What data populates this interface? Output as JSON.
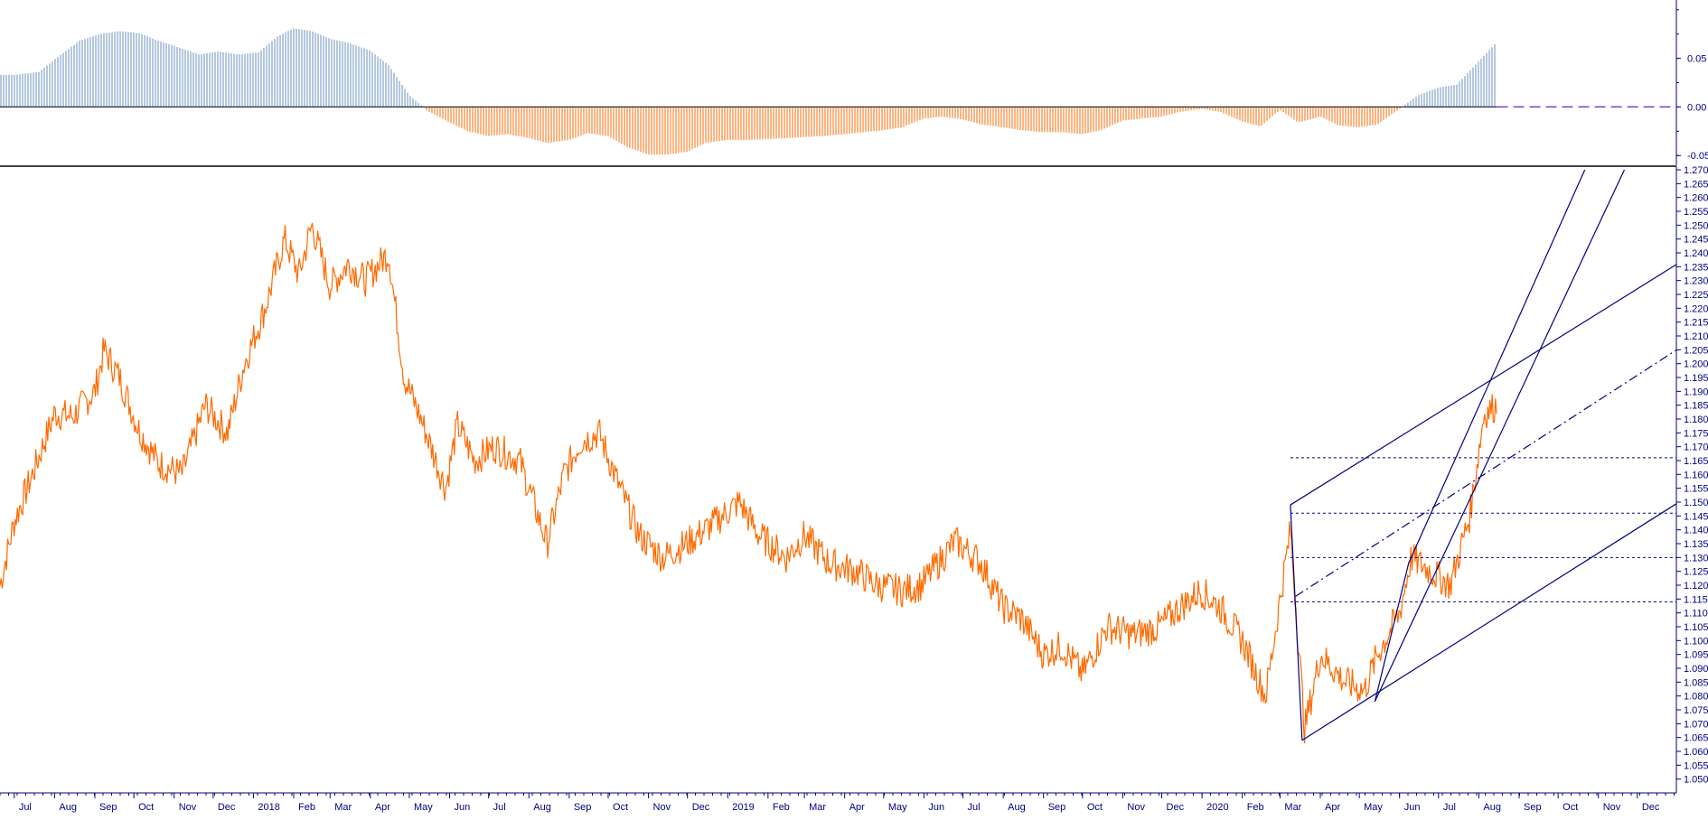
{
  "colors": {
    "price": "#ff6a00",
    "positive_bar": "#6a8fbf",
    "negative_bar": "#ff6a00",
    "trend_lines": "#000080",
    "axis_text": "#000080",
    "zero_line": "#7a3dbf"
  },
  "chart_data": [
    {
      "type": "bar",
      "role": "oscillator-histogram",
      "ylim": [
        -0.06,
        0.11
      ],
      "yticks": [
        "0.05",
        "0.00",
        "-0.05"
      ],
      "series": [
        {
          "x": [
            "2017-07-01",
            "2017-07-20",
            "2017-08-05",
            "2017-08-20",
            "2017-09-05",
            "2017-09-20",
            "2017-10-05",
            "2017-10-20",
            "2017-11-05",
            "2017-11-20",
            "2017-12-05",
            "2017-12-20",
            "2018-01-05",
            "2018-01-20",
            "2018-02-01",
            "2018-02-15",
            "2018-03-01",
            "2018-03-15",
            "2018-04-01",
            "2018-04-15",
            "2018-05-01",
            "2018-05-15",
            "2018-06-01",
            "2018-06-15",
            "2018-07-01",
            "2018-07-15",
            "2018-08-01",
            "2018-08-15",
            "2018-09-01",
            "2018-09-15",
            "2018-10-01",
            "2018-10-15",
            "2018-11-01",
            "2018-11-15",
            "2018-12-01",
            "2018-12-15",
            "2019-01-01",
            "2019-01-15",
            "2019-02-01",
            "2019-02-15",
            "2019-03-01",
            "2019-03-15",
            "2019-04-01",
            "2019-04-15",
            "2019-05-01",
            "2019-05-15",
            "2019-06-01",
            "2019-06-15",
            "2019-07-01",
            "2019-07-15",
            "2019-08-01",
            "2019-08-15",
            "2019-09-01",
            "2019-09-15",
            "2019-10-01",
            "2019-10-15",
            "2019-11-01",
            "2019-11-15",
            "2019-12-01",
            "2019-12-15",
            "2020-01-01",
            "2020-01-15",
            "2020-02-01",
            "2020-02-15",
            "2020-03-01",
            "2020-03-15",
            "2020-04-01",
            "2020-04-15",
            "2020-05-01",
            "2020-05-15",
            "2020-06-01",
            "2020-06-15",
            "2020-07-01",
            "2020-07-15",
            "2020-08-01",
            "2020-08-15"
          ],
          "values": [
            0.033,
            0.036,
            0.053,
            0.068,
            0.075,
            0.078,
            0.076,
            0.068,
            0.061,
            0.054,
            0.057,
            0.054,
            0.056,
            0.073,
            0.081,
            0.078,
            0.07,
            0.066,
            0.058,
            0.043,
            0.012,
            -0.004,
            -0.016,
            -0.025,
            -0.03,
            -0.028,
            -0.032,
            -0.037,
            -0.034,
            -0.027,
            -0.03,
            -0.041,
            -0.049,
            -0.049,
            -0.046,
            -0.037,
            -0.034,
            -0.034,
            -0.033,
            -0.032,
            -0.031,
            -0.03,
            -0.028,
            -0.026,
            -0.024,
            -0.021,
            -0.012,
            -0.01,
            -0.013,
            -0.018,
            -0.021,
            -0.024,
            -0.026,
            -0.026,
            -0.028,
            -0.024,
            -0.014,
            -0.012,
            -0.01,
            -0.005,
            -0.002,
            -0.005,
            -0.015,
            -0.02,
            -0.003,
            -0.016,
            -0.01,
            -0.019,
            -0.021,
            -0.018,
            -0.002,
            0.012,
            0.02,
            0.023,
            0.047,
            0.067
          ]
        }
      ]
    },
    {
      "type": "line",
      "role": "price",
      "ylim": [
        1.045,
        1.27
      ],
      "ytick_step": 0.005,
      "ytick_label_range": [
        1.05,
        1.27
      ],
      "xlim": [
        "2017-06-20",
        "2020-12-31"
      ],
      "x_tick_labels": [
        "Jul",
        "Aug",
        "Sep",
        "Oct",
        "Nov",
        "Dec",
        "2018",
        "Feb",
        "Mar",
        "Apr",
        "May",
        "Jun",
        "Jul",
        "Aug",
        "Sep",
        "Oct",
        "Nov",
        "Dec",
        "2019",
        "Feb",
        "Mar",
        "Apr",
        "May",
        "Jun",
        "Jul",
        "Aug",
        "Sep",
        "Oct",
        "Nov",
        "Dec",
        "2020",
        "Feb",
        "Mar",
        "Apr",
        "May",
        "Jun",
        "Jul",
        "Aug",
        "Sep",
        "Oct",
        "Nov",
        "Dec"
      ],
      "series": [
        {
          "x": [
            "2017-06-20",
            "2017-07-01",
            "2017-07-15",
            "2017-08-01",
            "2017-08-15",
            "2017-09-01",
            "2017-09-08",
            "2017-09-20",
            "2017-10-05",
            "2017-10-20",
            "2017-11-07",
            "2017-11-25",
            "2017-12-12",
            "2017-12-25",
            "2018-01-10",
            "2018-01-25",
            "2018-02-05",
            "2018-02-15",
            "2018-03-01",
            "2018-03-15",
            "2018-03-28",
            "2018-04-15",
            "2018-04-27",
            "2018-05-10",
            "2018-05-29",
            "2018-06-07",
            "2018-06-20",
            "2018-07-05",
            "2018-07-25",
            "2018-08-15",
            "2018-08-28",
            "2018-09-10",
            "2018-09-24",
            "2018-10-10",
            "2018-10-25",
            "2018-11-12",
            "2018-11-30",
            "2018-12-15",
            "2019-01-10",
            "2019-01-25",
            "2019-02-15",
            "2019-03-01",
            "2019-03-20",
            "2019-04-10",
            "2019-04-26",
            "2019-05-15",
            "2019-05-30",
            "2019-06-25",
            "2019-07-15",
            "2019-08-01",
            "2019-08-15",
            "2019-09-01",
            "2019-09-15",
            "2019-10-01",
            "2019-10-20",
            "2019-11-10",
            "2019-11-29",
            "2019-12-15",
            "2019-12-31",
            "2020-01-15",
            "2020-02-01",
            "2020-02-19",
            "2020-03-09",
            "2020-03-20",
            "2020-04-01",
            "2020-04-20",
            "2020-05-05",
            "2020-05-15",
            "2020-06-01",
            "2020-06-10",
            "2020-06-25",
            "2020-07-10",
            "2020-07-25",
            "2020-08-05",
            "2020-08-15"
          ],
          "values": [
            1.12,
            1.143,
            1.16,
            1.182,
            1.181,
            1.19,
            1.205,
            1.195,
            1.176,
            1.164,
            1.16,
            1.185,
            1.175,
            1.2,
            1.22,
            1.245,
            1.232,
            1.25,
            1.228,
            1.236,
            1.23,
            1.24,
            1.195,
            1.18,
            1.155,
            1.178,
            1.165,
            1.17,
            1.165,
            1.135,
            1.16,
            1.172,
            1.175,
            1.155,
            1.138,
            1.13,
            1.135,
            1.14,
            1.15,
            1.138,
            1.13,
            1.138,
            1.128,
            1.125,
            1.12,
            1.118,
            1.12,
            1.136,
            1.128,
            1.112,
            1.108,
            1.095,
            1.098,
            1.088,
            1.105,
            1.102,
            1.105,
            1.112,
            1.118,
            1.112,
            1.1,
            1.08,
            1.14,
            1.068,
            1.095,
            1.085,
            1.082,
            1.095,
            1.11,
            1.13,
            1.125,
            1.12,
            1.145,
            1.182,
            1.185
          ]
        }
      ]
    }
  ]
}
